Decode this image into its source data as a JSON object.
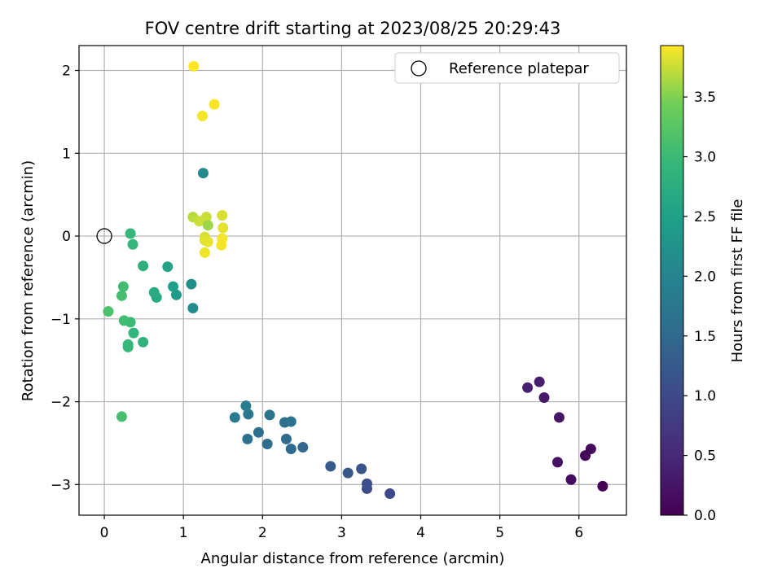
{
  "chart_data": {
    "type": "scatter",
    "title": "FOV centre drift starting at 2023/08/25 20:29:43",
    "xlabel": "Angular distance from reference (arcmin)",
    "ylabel": "Rotation from reference (arcmin)",
    "xlim": [
      -0.32,
      6.6
    ],
    "ylim": [
      -3.37,
      2.3
    ],
    "xticks": [
      0,
      1,
      2,
      3,
      4,
      5,
      6
    ],
    "yticks": [
      -3,
      -2,
      -1,
      0,
      1,
      2
    ],
    "grid": true,
    "legend": {
      "position": "top-right",
      "label": "Reference platepar"
    },
    "reference_point": {
      "x": 0,
      "y": 0
    },
    "colorbar": {
      "label": "Hours from first FF file",
      "range": [
        0,
        3.93
      ],
      "ticks": [
        0.0,
        0.5,
        1.0,
        1.5,
        2.0,
        2.5,
        3.0,
        3.5
      ],
      "colormap": "viridis"
    },
    "points": [
      {
        "x": 6.3,
        "y": -3.02,
        "c": 0.02
      },
      {
        "x": 6.08,
        "y": -2.65,
        "c": 0.05
      },
      {
        "x": 6.15,
        "y": -2.57,
        "c": 0.1
      },
      {
        "x": 5.9,
        "y": -2.94,
        "c": 0.15
      },
      {
        "x": 5.73,
        "y": -2.73,
        "c": 0.2
      },
      {
        "x": 5.75,
        "y": -2.19,
        "c": 0.25
      },
      {
        "x": 5.56,
        "y": -1.95,
        "c": 0.3
      },
      {
        "x": 5.5,
        "y": -1.76,
        "c": 0.35
      },
      {
        "x": 5.35,
        "y": -1.83,
        "c": 0.4
      },
      {
        "x": 3.61,
        "y": -3.11,
        "c": 1.0
      },
      {
        "x": 3.32,
        "y": -3.05,
        "c": 1.05
      },
      {
        "x": 3.32,
        "y": -2.99,
        "c": 1.1
      },
      {
        "x": 3.25,
        "y": -2.81,
        "c": 1.15
      },
      {
        "x": 3.08,
        "y": -2.86,
        "c": 1.2
      },
      {
        "x": 2.86,
        "y": -2.78,
        "c": 1.25
      },
      {
        "x": 2.51,
        "y": -2.55,
        "c": 1.45
      },
      {
        "x": 2.36,
        "y": -2.57,
        "c": 1.5
      },
      {
        "x": 2.3,
        "y": -2.45,
        "c": 1.55
      },
      {
        "x": 2.06,
        "y": -2.51,
        "c": 1.55
      },
      {
        "x": 1.95,
        "y": -2.37,
        "c": 1.6
      },
      {
        "x": 1.81,
        "y": -2.45,
        "c": 1.65
      },
      {
        "x": 2.28,
        "y": -2.25,
        "c": 1.6
      },
      {
        "x": 2.36,
        "y": -2.24,
        "c": 1.65
      },
      {
        "x": 2.09,
        "y": -2.16,
        "c": 1.7
      },
      {
        "x": 1.82,
        "y": -2.15,
        "c": 1.75
      },
      {
        "x": 1.65,
        "y": -2.19,
        "c": 1.8
      },
      {
        "x": 1.79,
        "y": -2.05,
        "c": 1.85
      },
      {
        "x": 1.25,
        "y": 0.76,
        "c": 2.1
      },
      {
        "x": 1.12,
        "y": -0.87,
        "c": 2.15
      },
      {
        "x": 1.1,
        "y": -0.58,
        "c": 2.2
      },
      {
        "x": 0.91,
        "y": -0.71,
        "c": 2.4
      },
      {
        "x": 0.87,
        "y": -0.61,
        "c": 2.45
      },
      {
        "x": 0.8,
        "y": -0.37,
        "c": 2.55
      },
      {
        "x": 0.66,
        "y": -0.74,
        "c": 2.65
      },
      {
        "x": 0.63,
        "y": -0.68,
        "c": 2.7
      },
      {
        "x": 0.49,
        "y": -0.36,
        "c": 2.8
      },
      {
        "x": 0.36,
        "y": -0.1,
        "c": 2.9
      },
      {
        "x": 0.33,
        "y": 0.03,
        "c": 2.95
      },
      {
        "x": 0.49,
        "y": -1.28,
        "c": 2.85
      },
      {
        "x": 0.37,
        "y": -1.17,
        "c": 2.9
      },
      {
        "x": 0.3,
        "y": -1.34,
        "c": 2.95
      },
      {
        "x": 0.3,
        "y": -1.31,
        "c": 2.95
      },
      {
        "x": 0.33,
        "y": -1.04,
        "c": 3.0
      },
      {
        "x": 0.25,
        "y": -1.02,
        "c": 3.05
      },
      {
        "x": 0.22,
        "y": -0.72,
        "c": 3.1
      },
      {
        "x": 0.24,
        "y": -0.61,
        "c": 3.05
      },
      {
        "x": 0.05,
        "y": -0.91,
        "c": 3.15
      },
      {
        "x": 0.22,
        "y": -2.18,
        "c": 3.1
      },
      {
        "x": 1.12,
        "y": 0.23,
        "c": 3.7
      },
      {
        "x": 1.2,
        "y": 0.18,
        "c": 3.75
      },
      {
        "x": 1.29,
        "y": 0.23,
        "c": 3.75
      },
      {
        "x": 1.31,
        "y": 0.13,
        "c": 3.6
      },
      {
        "x": 1.27,
        "y": -0.01,
        "c": 3.8
      },
      {
        "x": 1.27,
        "y": -0.05,
        "c": 3.82
      },
      {
        "x": 1.31,
        "y": -0.07,
        "c": 3.85
      },
      {
        "x": 1.27,
        "y": -0.2,
        "c": 3.88
      },
      {
        "x": 1.49,
        "y": 0.25,
        "c": 3.8
      },
      {
        "x": 1.5,
        "y": 0.1,
        "c": 3.85
      },
      {
        "x": 1.49,
        "y": -0.03,
        "c": 3.9
      },
      {
        "x": 1.48,
        "y": -0.11,
        "c": 3.9
      },
      {
        "x": 1.24,
        "y": 1.45,
        "c": 3.9
      },
      {
        "x": 1.39,
        "y": 1.59,
        "c": 3.92
      },
      {
        "x": 1.13,
        "y": 2.05,
        "c": 3.93
      }
    ]
  }
}
